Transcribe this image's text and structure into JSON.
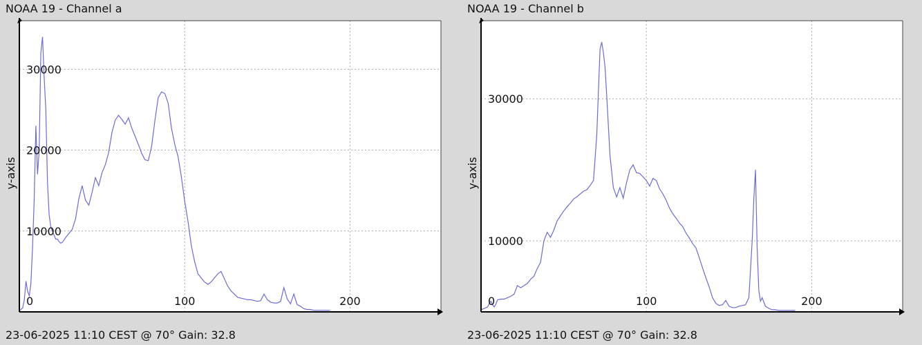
{
  "chart_data": [
    {
      "type": "line",
      "title": "NOAA 19 - Channel a",
      "footer": "23-06-2025 11:10 CEST @ 70° Gain: 32.8",
      "xlabel": "",
      "ylabel": "y-axis",
      "xlim": [
        0,
        255
      ],
      "ylim": [
        0,
        36000
      ],
      "x_ticks": [
        0,
        100,
        200
      ],
      "y_ticks": [
        10000,
        20000,
        30000
      ],
      "grid": true,
      "line_color": "#6b6bd6",
      "series": [
        {
          "x": [
            0,
            1,
            2,
            3,
            4,
            5,
            6,
            7,
            8,
            9,
            10,
            11,
            12,
            13,
            14,
            15,
            16,
            17,
            18,
            19,
            20,
            21,
            22,
            23,
            24,
            25,
            26,
            28,
            30,
            32,
            34,
            36,
            38,
            40,
            42,
            44,
            46,
            48,
            50,
            52,
            54,
            56,
            58,
            60,
            62,
            64,
            66,
            68,
            70,
            72,
            74,
            76,
            78,
            80,
            82,
            84,
            86,
            88,
            90,
            92,
            94,
            96,
            98,
            100,
            102,
            104,
            106,
            108,
            110,
            112,
            114,
            116,
            118,
            120,
            122,
            124,
            126,
            128,
            130,
            132,
            134,
            136,
            138,
            140,
            142,
            144,
            146,
            148,
            150,
            152,
            154,
            156,
            158,
            160,
            162,
            164,
            166,
            168,
            170,
            172,
            174,
            176,
            178,
            180,
            182,
            184,
            186,
            188
          ],
          "y": [
            100,
            300,
            500,
            1500,
            3800,
            2500,
            2000,
            3500,
            8000,
            14000,
            23000,
            17000,
            20000,
            32000,
            34000,
            29000,
            25000,
            16000,
            12000,
            10500,
            10000,
            9500,
            9000,
            9000,
            8700,
            8500,
            8600,
            9200,
            9700,
            10200,
            11500,
            14000,
            15600,
            13800,
            13200,
            14800,
            16600,
            15600,
            17200,
            18200,
            19700,
            22200,
            23700,
            24300,
            23800,
            23200,
            24000,
            22700,
            21700,
            20700,
            19600,
            18800,
            18700,
            20500,
            23700,
            26500,
            27200,
            27000,
            25800,
            22700,
            20700,
            19200,
            16700,
            13700,
            11200,
            8200,
            6200,
            4700,
            4200,
            3700,
            3400,
            3700,
            4200,
            4700,
            5000,
            4100,
            3200,
            2600,
            2200,
            1800,
            1700,
            1600,
            1500,
            1500,
            1400,
            1300,
            1400,
            2200,
            1500,
            1200,
            1100,
            1100,
            1300,
            3000,
            1600,
            1000,
            2200,
            900,
            700,
            400,
            300,
            300,
            200,
            200,
            200,
            200,
            200,
            200
          ],
          "name": ""
        }
      ]
    },
    {
      "type": "line",
      "title": "NOAA 19 - Channel b",
      "footer": "23-06-2025 11:10 CEST @ 70° Gain: 32.8",
      "xlabel": "",
      "ylabel": "y-axis",
      "xlim": [
        0,
        255
      ],
      "ylim": [
        0,
        41000
      ],
      "x_ticks": [
        0,
        100,
        200
      ],
      "y_ticks": [
        10000,
        30000
      ],
      "grid": true,
      "line_color": "#6b6bd6",
      "series": [
        {
          "x": [
            0,
            2,
            4,
            5,
            6,
            7,
            8,
            9,
            10,
            12,
            14,
            16,
            18,
            20,
            22,
            24,
            26,
            28,
            30,
            32,
            34,
            36,
            38,
            40,
            42,
            44,
            46,
            48,
            50,
            52,
            54,
            56,
            58,
            60,
            62,
            64,
            66,
            68,
            70,
            71,
            72,
            73,
            74,
            75,
            76,
            78,
            80,
            82,
            84,
            86,
            88,
            90,
            92,
            94,
            96,
            98,
            100,
            102,
            104,
            106,
            108,
            110,
            112,
            114,
            116,
            118,
            120,
            122,
            124,
            126,
            128,
            130,
            132,
            134,
            136,
            138,
            140,
            142,
            144,
            146,
            148,
            150,
            152,
            154,
            156,
            158,
            160,
            162,
            164,
            165,
            166,
            167,
            168,
            169,
            170,
            172,
            174,
            176,
            178,
            180,
            182,
            184,
            186,
            188,
            190
          ],
          "y": [
            300,
            500,
            700,
            1200,
            1500,
            1000,
            700,
            1100,
            1700,
            1800,
            1800,
            2000,
            2200,
            2500,
            3700,
            3400,
            3700,
            4000,
            4600,
            5000,
            6100,
            7000,
            10000,
            11200,
            10500,
            11500,
            12800,
            13500,
            14200,
            14800,
            15300,
            15900,
            16200,
            16600,
            17000,
            17200,
            17800,
            18500,
            25000,
            31000,
            37000,
            38000,
            36500,
            34500,
            30500,
            22000,
            17500,
            16200,
            17500,
            16000,
            18200,
            20000,
            20700,
            19600,
            19500,
            19000,
            18500,
            17700,
            18800,
            18500,
            17300,
            16600,
            15700,
            14600,
            13800,
            13200,
            12500,
            12000,
            11100,
            10400,
            9600,
            9000,
            7600,
            6200,
            4800,
            3500,
            2000,
            1200,
            900,
            1000,
            1600,
            800,
            600,
            600,
            800,
            900,
            1000,
            2000,
            10000,
            16000,
            20000,
            9000,
            3000,
            1500,
            2000,
            800,
            500,
            300,
            300,
            200,
            200,
            200,
            200,
            200,
            200
          ],
          "name": ""
        }
      ]
    }
  ]
}
